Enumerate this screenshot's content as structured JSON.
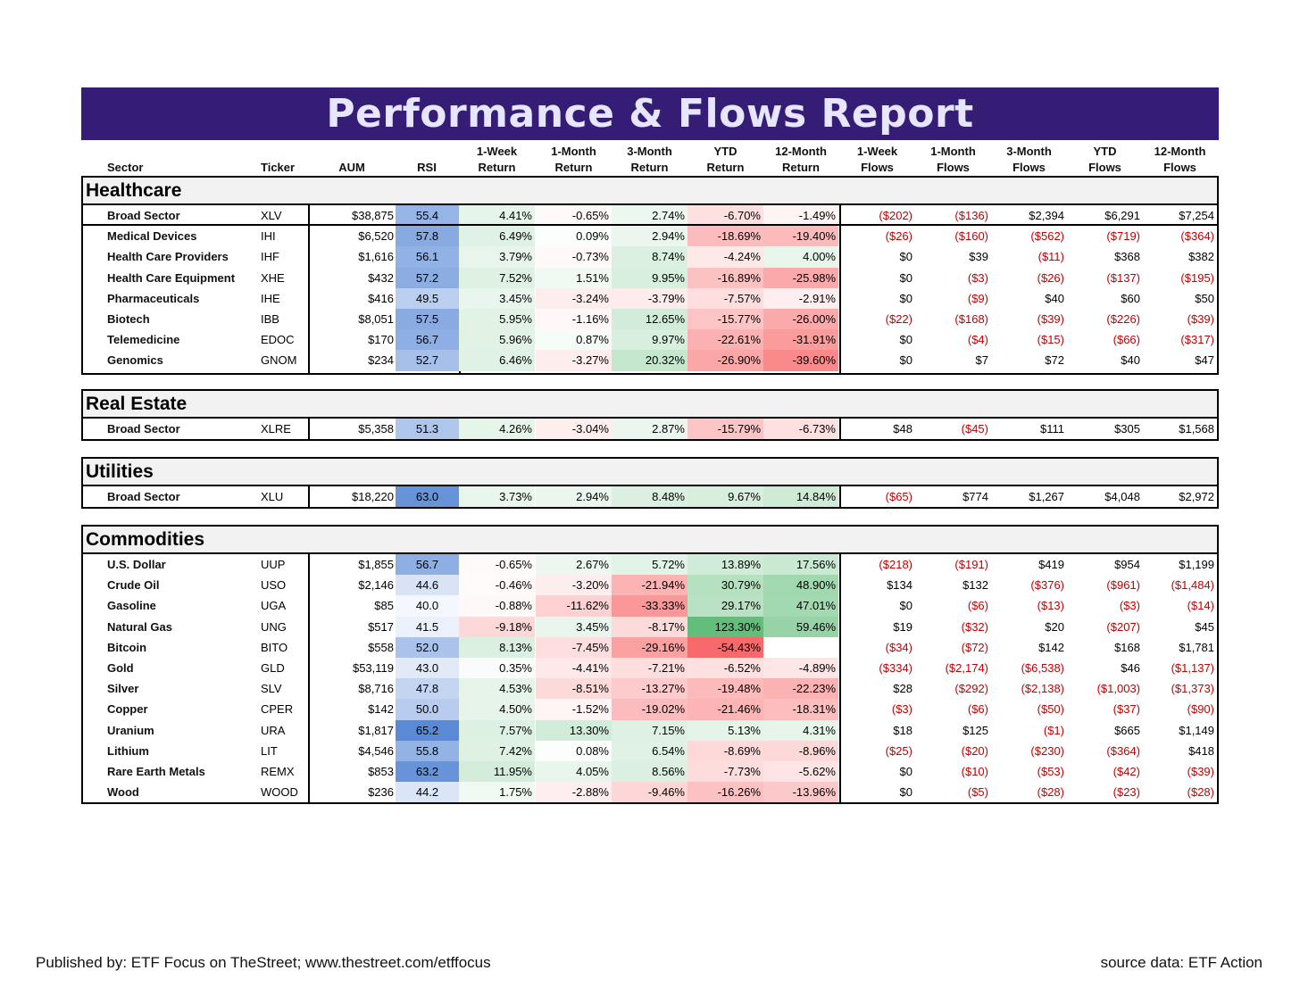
{
  "title": "Performance & Flows Report",
  "columns": {
    "sector": "Sector",
    "ticker": "Ticker",
    "aum": "AUM",
    "rsi": "RSI",
    "r1w": [
      "1-Week",
      "Return"
    ],
    "r1m": [
      "1-Month",
      "Return"
    ],
    "r3m": [
      "3-Month",
      "Return"
    ],
    "rytd": [
      "YTD",
      "Return"
    ],
    "r12m": [
      "12-Month",
      "Return"
    ],
    "f1w": [
      "1-Week",
      "Flows"
    ],
    "f1m": [
      "1-Month",
      "Flows"
    ],
    "f3m": [
      "3-Month",
      "Flows"
    ],
    "fytd": [
      "YTD",
      "Flows"
    ],
    "f12m": [
      "12-Month",
      "Flows"
    ]
  },
  "sections": [
    {
      "name": "Healthcare",
      "rows": [
        {
          "name": "Broad Sector",
          "ticker": "XLV",
          "aum": "$38,875",
          "rsi": "55.4",
          "r": [
            "4.41%",
            "-0.65%",
            "2.74%",
            "-6.70%",
            "-1.49%"
          ],
          "f": [
            "($202)",
            "($136)",
            "$2,394",
            "$6,291",
            "$7,254"
          ]
        },
        {
          "name": "Medical Devices",
          "ticker": "IHI",
          "aum": "$6,520",
          "rsi": "57.8",
          "r": [
            "6.49%",
            "0.09%",
            "2.94%",
            "-18.69%",
            "-19.40%"
          ],
          "f": [
            "($26)",
            "($160)",
            "($562)",
            "($719)",
            "($364)"
          ]
        },
        {
          "name": "Health Care Providers",
          "ticker": "IHF",
          "aum": "$1,616",
          "rsi": "56.1",
          "r": [
            "3.79%",
            "-0.73%",
            "8.74%",
            "-4.24%",
            "4.00%"
          ],
          "f": [
            "$0",
            "$39",
            "($11)",
            "$368",
            "$382"
          ]
        },
        {
          "name": "Health Care Equipment",
          "ticker": "XHE",
          "aum": "$432",
          "rsi": "57.2",
          "r": [
            "7.52%",
            "1.51%",
            "9.95%",
            "-16.89%",
            "-25.98%"
          ],
          "f": [
            "$0",
            "($3)",
            "($26)",
            "($137)",
            "($195)"
          ]
        },
        {
          "name": "Pharmaceuticals",
          "ticker": "IHE",
          "aum": "$416",
          "rsi": "49.5",
          "r": [
            "3.45%",
            "-3.24%",
            "-3.79%",
            "-7.57%",
            "-2.91%"
          ],
          "f": [
            "$0",
            "($9)",
            "$40",
            "$60",
            "$50"
          ]
        },
        {
          "name": "Biotech",
          "ticker": "IBB",
          "aum": "$8,051",
          "rsi": "57.5",
          "r": [
            "5.95%",
            "-1.16%",
            "12.65%",
            "-15.77%",
            "-26.00%"
          ],
          "f": [
            "($22)",
            "($168)",
            "($39)",
            "($226)",
            "($39)"
          ]
        },
        {
          "name": "Telemedicine",
          "ticker": "EDOC",
          "aum": "$170",
          "rsi": "56.7",
          "r": [
            "5.96%",
            "0.87%",
            "9.97%",
            "-22.61%",
            "-31.91%"
          ],
          "f": [
            "$0",
            "($4)",
            "($15)",
            "($66)",
            "($317)"
          ]
        },
        {
          "name": "Genomics",
          "ticker": "GNOM",
          "aum": "$234",
          "rsi": "52.7",
          "r": [
            "6.46%",
            "-3.27%",
            "20.32%",
            "-26.90%",
            "-39.60%"
          ],
          "f": [
            "$0",
            "$7",
            "$72",
            "$40",
            "$47"
          ]
        }
      ]
    },
    {
      "name": "Real Estate",
      "rows": [
        {
          "name": "Broad Sector",
          "ticker": "XLRE",
          "aum": "$5,358",
          "rsi": "51.3",
          "r": [
            "4.26%",
            "-3.04%",
            "2.87%",
            "-15.79%",
            "-6.73%"
          ],
          "f": [
            "$48",
            "($45)",
            "$111",
            "$305",
            "$1,568"
          ]
        }
      ]
    },
    {
      "name": "Utilities",
      "rows": [
        {
          "name": "Broad Sector",
          "ticker": "XLU",
          "aum": "$18,220",
          "rsi": "63.0",
          "r": [
            "3.73%",
            "2.94%",
            "8.48%",
            "9.67%",
            "14.84%"
          ],
          "f": [
            "($65)",
            "$774",
            "$1,267",
            "$4,048",
            "$2,972"
          ]
        }
      ]
    },
    {
      "name": "Commodities",
      "rows": [
        {
          "name": "U.S. Dollar",
          "ticker": "UUP",
          "aum": "$1,855",
          "rsi": "56.7",
          "r": [
            "-0.65%",
            "2.67%",
            "5.72%",
            "13.89%",
            "17.56%"
          ],
          "f": [
            "($218)",
            "($191)",
            "$419",
            "$954",
            "$1,199"
          ]
        },
        {
          "name": "Crude Oil",
          "ticker": "USO",
          "aum": "$2,146",
          "rsi": "44.6",
          "r": [
            "-0.46%",
            "-3.20%",
            "-21.94%",
            "30.79%",
            "48.90%"
          ],
          "f": [
            "$134",
            "$132",
            "($376)",
            "($961)",
            "($1,484)"
          ]
        },
        {
          "name": "Gasoline",
          "ticker": "UGA",
          "aum": "$85",
          "rsi": "40.0",
          "r": [
            "-0.88%",
            "-11.62%",
            "-33.33%",
            "29.17%",
            "47.01%"
          ],
          "f": [
            "$0",
            "($6)",
            "($13)",
            "($3)",
            "($14)"
          ]
        },
        {
          "name": "Natural Gas",
          "ticker": "UNG",
          "aum": "$517",
          "rsi": "41.5",
          "r": [
            "-9.18%",
            "3.45%",
            "-8.17%",
            "123.30%",
            "59.46%"
          ],
          "f": [
            "$19",
            "($32)",
            "$20",
            "($207)",
            "$45"
          ]
        },
        {
          "name": "Bitcoin",
          "ticker": "BITO",
          "aum": "$558",
          "rsi": "52.0",
          "r": [
            "8.13%",
            "-7.45%",
            "-29.16%",
            "-54.43%",
            ""
          ],
          "f": [
            "($34)",
            "($72)",
            "$142",
            "$168",
            "$1,781"
          ]
        },
        {
          "name": "Gold",
          "ticker": "GLD",
          "aum": "$53,119",
          "rsi": "43.0",
          "r": [
            "0.35%",
            "-4.41%",
            "-7.21%",
            "-6.52%",
            "-4.89%"
          ],
          "f": [
            "($334)",
            "($2,174)",
            "($6,538)",
            "$46",
            "($1,137)"
          ]
        },
        {
          "name": "Silver",
          "ticker": "SLV",
          "aum": "$8,716",
          "rsi": "47.8",
          "r": [
            "4.53%",
            "-8.51%",
            "-13.27%",
            "-19.48%",
            "-22.23%"
          ],
          "f": [
            "$28",
            "($292)",
            "($2,138)",
            "($1,003)",
            "($1,373)"
          ]
        },
        {
          "name": "Copper",
          "ticker": "CPER",
          "aum": "$142",
          "rsi": "50.0",
          "r": [
            "4.50%",
            "-1.52%",
            "-19.02%",
            "-21.46%",
            "-18.31%"
          ],
          "f": [
            "($3)",
            "($6)",
            "($50)",
            "($37)",
            "($90)"
          ]
        },
        {
          "name": "Uranium",
          "ticker": "URA",
          "aum": "$1,817",
          "rsi": "65.2",
          "r": [
            "7.57%",
            "13.30%",
            "7.15%",
            "5.13%",
            "4.31%"
          ],
          "f": [
            "$18",
            "$125",
            "($1)",
            "$665",
            "$1,149"
          ]
        },
        {
          "name": "Lithium",
          "ticker": "LIT",
          "aum": "$4,546",
          "rsi": "55.8",
          "r": [
            "7.42%",
            "0.08%",
            "6.54%",
            "-8.69%",
            "-8.96%"
          ],
          "f": [
            "($25)",
            "($20)",
            "($230)",
            "($364)",
            "$418"
          ]
        },
        {
          "name": "Rare Earth Metals",
          "ticker": "REMX",
          "aum": "$853",
          "rsi": "63.2",
          "r": [
            "11.95%",
            "4.05%",
            "8.56%",
            "-7.73%",
            "-5.62%"
          ],
          "f": [
            "$0",
            "($10)",
            "($53)",
            "($42)",
            "($39)"
          ]
        },
        {
          "name": "Wood",
          "ticker": "WOOD",
          "aum": "$236",
          "rsi": "44.2",
          "r": [
            "1.75%",
            "-2.88%",
            "-9.46%",
            "-16.26%",
            "-13.96%"
          ],
          "f": [
            "$0",
            "($5)",
            "($28)",
            "($23)",
            "($28)"
          ]
        }
      ]
    }
  ],
  "colors": {
    "banner": "#351d76",
    "banner_text": "#e6e6ff",
    "negative_text": "#c00000",
    "positive_fill": "#63be7b",
    "negative_fill": "#f8696b",
    "rsi_fill": "#5a8ad6"
  },
  "footer": {
    "left": "Published by: ETF Focus on TheStreet; www.thestreet.com/etffocus",
    "right": "source data: ETF Action"
  }
}
